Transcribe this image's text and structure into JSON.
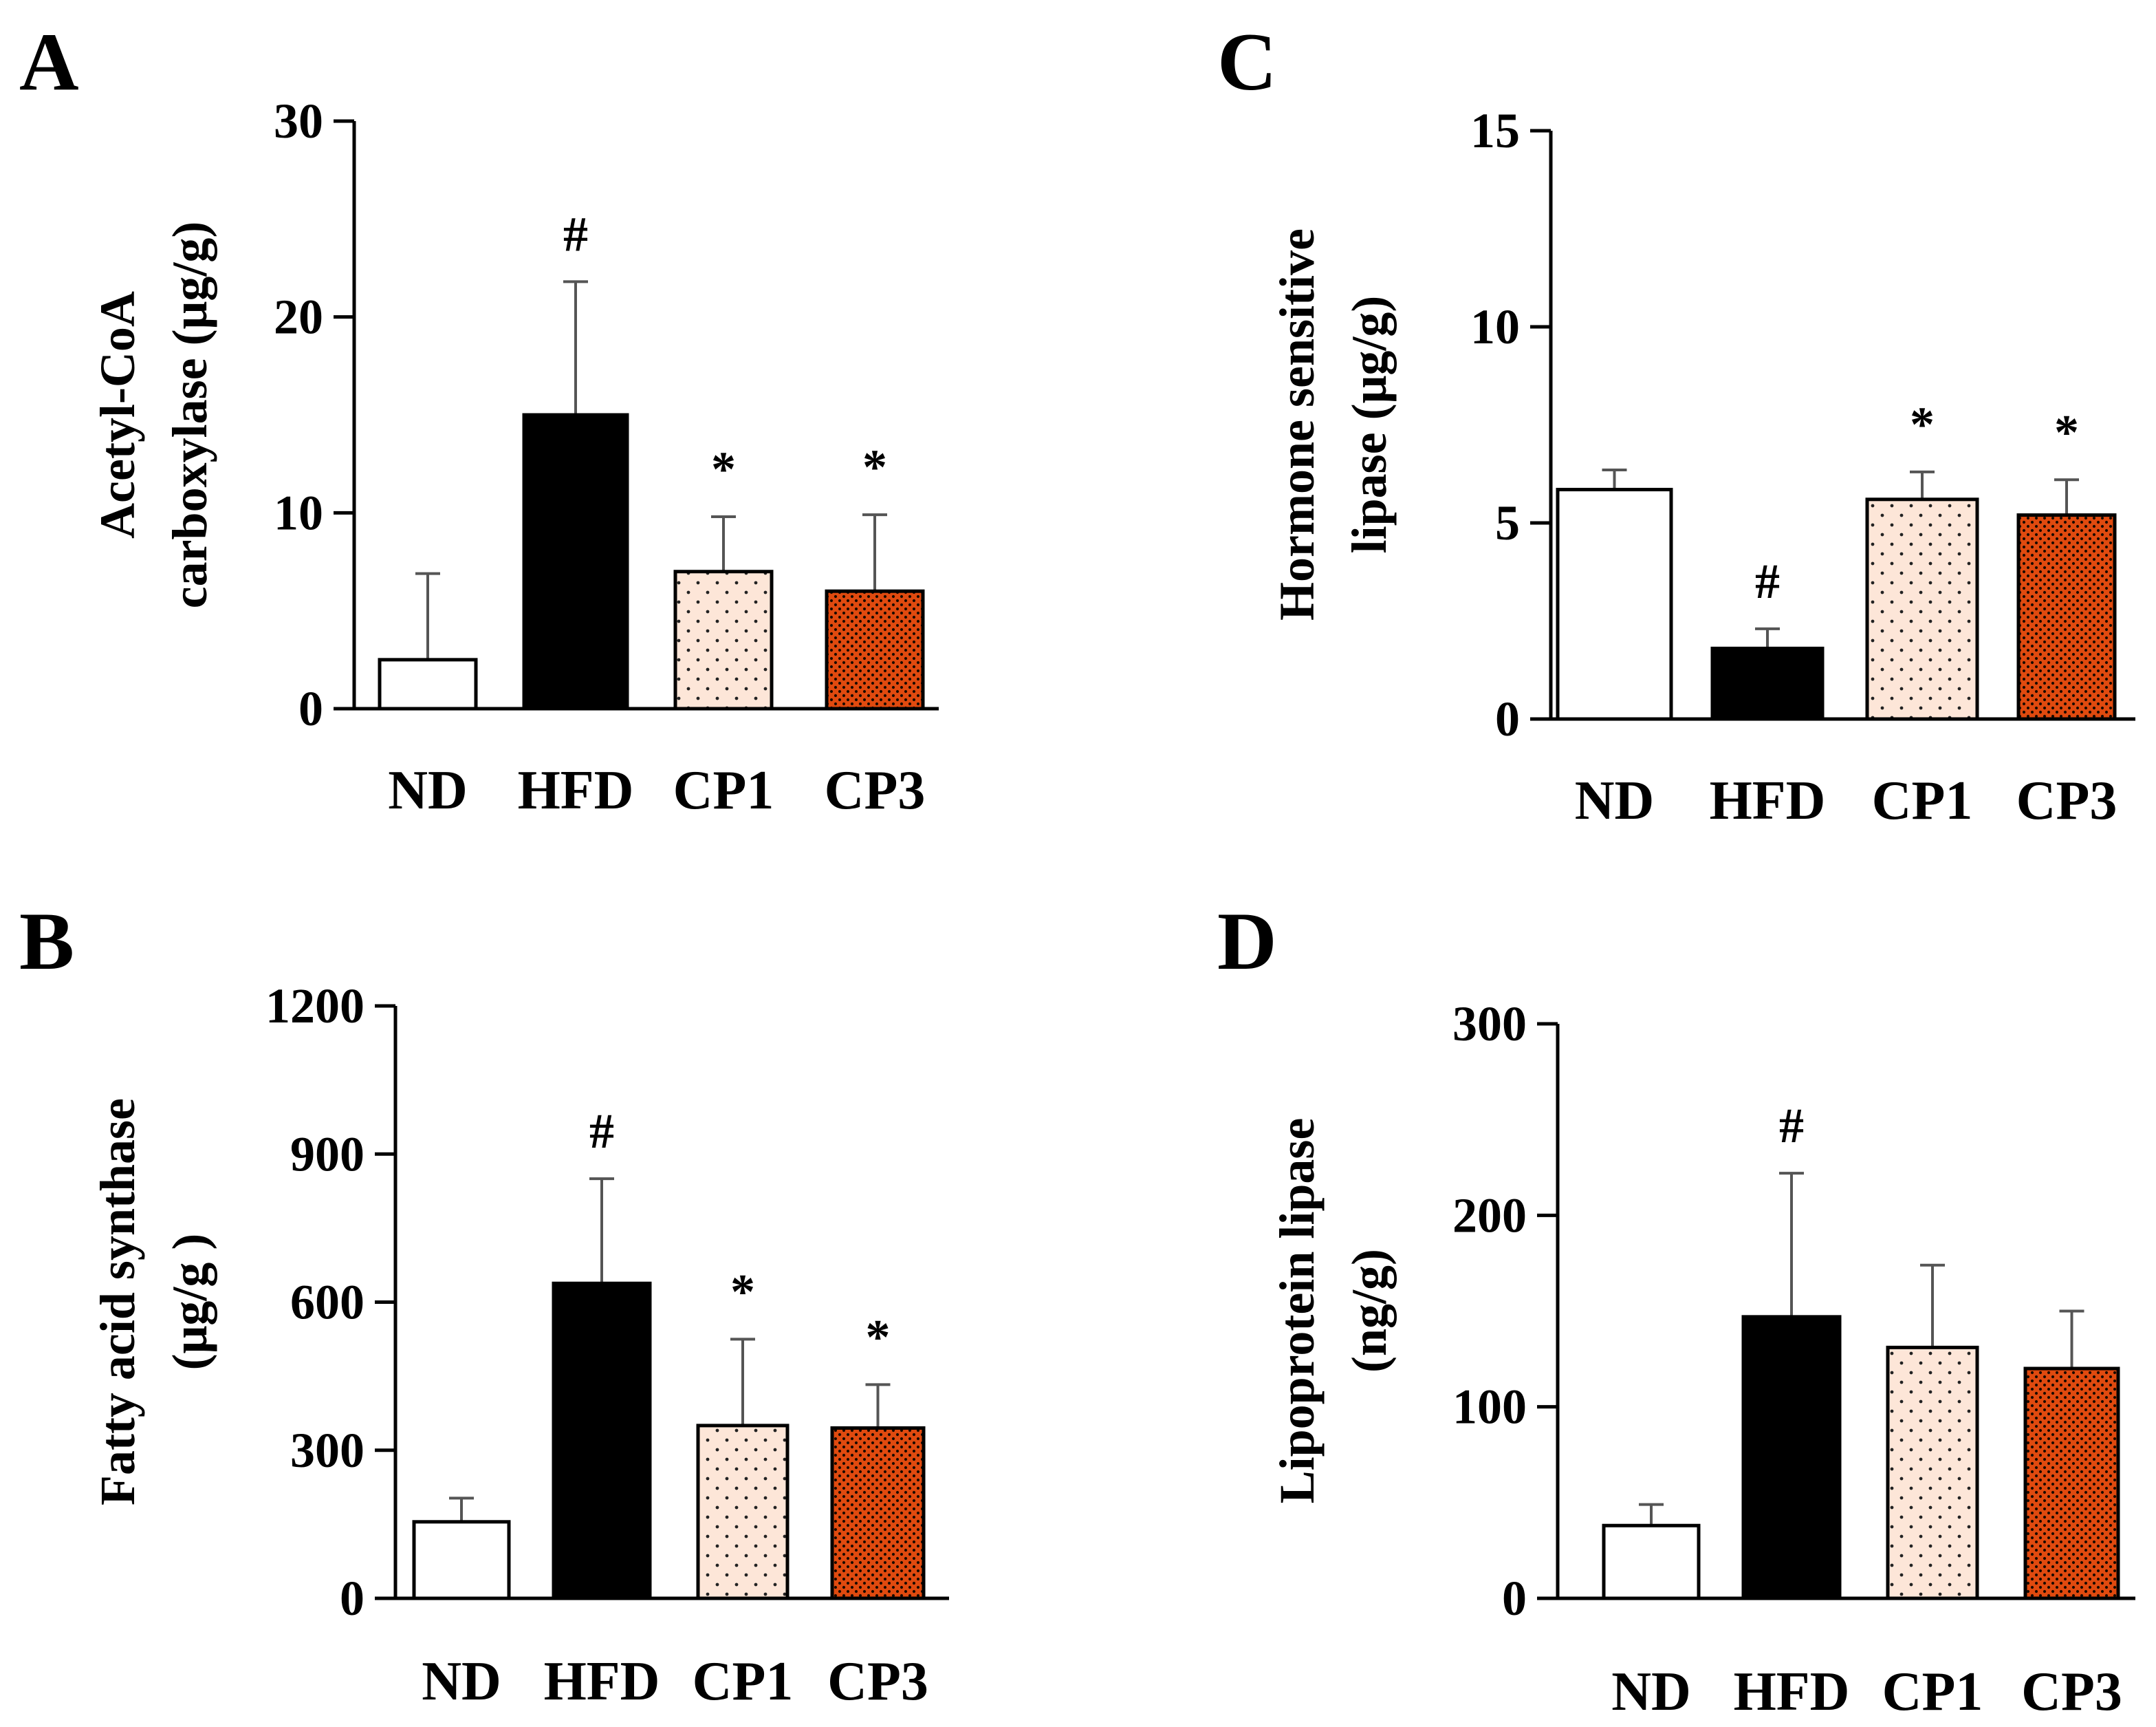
{
  "figure": {
    "layout": "2x2 panels"
  },
  "colors": {
    "ND": "#ffffff",
    "HFD": "#000000",
    "CP1": "#fde6d8",
    "CP3": "#e04a0f",
    "axis": "#000000",
    "error_bar": "#555555"
  },
  "chart_data": [
    {
      "panel": "A",
      "type": "bar",
      "ylabel_lines": [
        "Acetyl-CoA",
        "carboxylase (μg/g)"
      ],
      "xlabel": "",
      "ylim": [
        0,
        30
      ],
      "yticks": [
        0,
        10,
        20,
        30
      ],
      "categories": [
        "ND",
        "HFD",
        "CP1",
        "CP3"
      ],
      "values": [
        2.5,
        15.0,
        7.0,
        6.0
      ],
      "errors": [
        4.4,
        6.8,
        2.8,
        3.9
      ],
      "annotations": [
        "",
        "#",
        "*",
        "*"
      ],
      "grid": false
    },
    {
      "panel": "B",
      "type": "bar",
      "ylabel_lines": [
        "Fatty acid synthase",
        "(μg/g )"
      ],
      "xlabel": "",
      "ylim": [
        0,
        1200
      ],
      "yticks": [
        0,
        300,
        600,
        900,
        1200
      ],
      "categories": [
        "ND",
        "HFD",
        "CP1",
        "CP3"
      ],
      "values": [
        155,
        638,
        350,
        345
      ],
      "errors": [
        48,
        212,
        175,
        88
      ],
      "annotations": [
        "",
        "#",
        "*",
        "*"
      ],
      "grid": false
    },
    {
      "panel": "C",
      "type": "bar",
      "ylabel_lines": [
        "Hormone sensitive",
        "lipase (μg/g)"
      ],
      "xlabel": "",
      "ylim": [
        0,
        15
      ],
      "yticks": [
        0,
        5,
        10,
        15
      ],
      "categories": [
        "ND",
        "HFD",
        "CP1",
        "CP3"
      ],
      "values": [
        5.85,
        1.8,
        5.6,
        5.2
      ],
      "errors": [
        0.5,
        0.5,
        0.7,
        0.9
      ],
      "annotations": [
        "",
        "#",
        "*",
        "*"
      ],
      "grid": false
    },
    {
      "panel": "D",
      "type": "bar",
      "ylabel_lines": [
        "Lipoprotein lipase",
        "(ng/g)"
      ],
      "xlabel": "",
      "ylim": [
        0,
        300
      ],
      "yticks": [
        0,
        100,
        200,
        300
      ],
      "categories": [
        "ND",
        "HFD",
        "CP1",
        "CP3"
      ],
      "values": [
        38,
        147,
        131,
        120
      ],
      "errors": [
        11,
        75,
        43,
        30
      ],
      "annotations": [
        "",
        "#",
        "",
        ""
      ],
      "grid": false
    }
  ]
}
